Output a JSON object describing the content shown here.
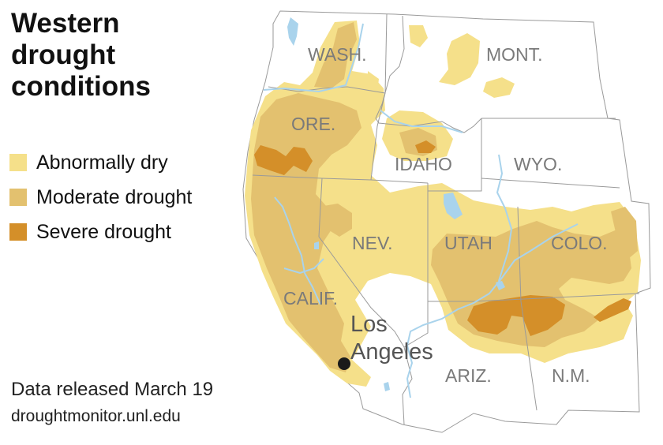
{
  "title": "Western drought conditions",
  "legend": [
    {
      "label": "Abnormally dry",
      "color": "#f5e08a"
    },
    {
      "label": "Moderate drought",
      "color": "#e3c16f"
    },
    {
      "label": "Severe drought",
      "color": "#d48f29"
    }
  ],
  "states": {
    "wash": "WASH.",
    "ore": "ORE.",
    "idaho": "IDAHO",
    "mont": "MONT.",
    "wyo": "WYO.",
    "nev": "NEV.",
    "utah": "UTAH",
    "colo": "COLO.",
    "calif": "CALIF.",
    "ariz": "ARIZ.",
    "nm": "N.M."
  },
  "city": {
    "line1": "Los",
    "line2": "Angeles"
  },
  "footer": {
    "release": "Data released March 19",
    "source": "droughtmonitor.unl.edu"
  },
  "colors": {
    "land": "#ffffff",
    "border": "#9a9a9a",
    "water": "#a9d3ec",
    "abnormally_dry": "#f5e08a",
    "moderate_drought": "#e3c16f",
    "severe_drought": "#d48f29"
  }
}
